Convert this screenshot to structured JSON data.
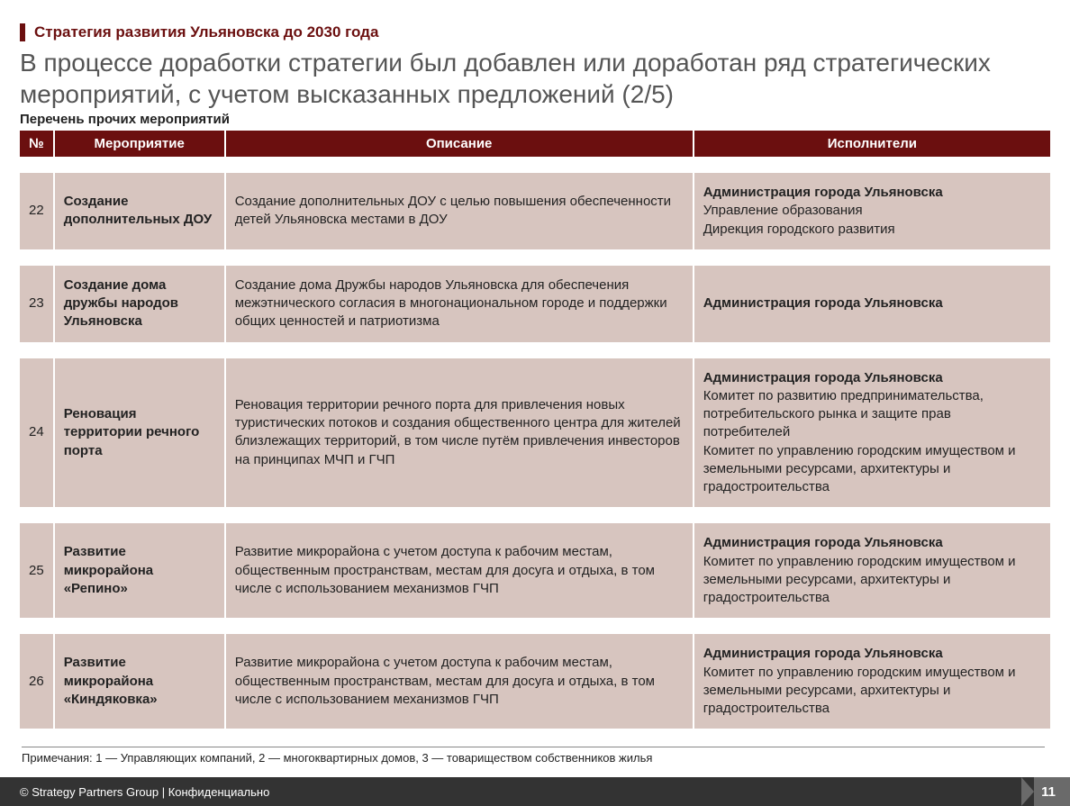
{
  "colors": {
    "brand_dark_red": "#6b0f0f",
    "row_bg": "#d7c5bf",
    "footer_bg": "#333333",
    "page_bg": "#6a6a6a",
    "title_gray": "#555555"
  },
  "kicker": "Стратегия развития Ульяновска до 2030 года",
  "title": "В процессе доработки стратегии был добавлен или доработан ряд стратегических мероприятий, с учетом высказанных предложений  (2/5)",
  "subtitle": "Перечень прочих мероприятий",
  "table": {
    "headers": {
      "num": "№",
      "event": "Мероприятие",
      "desc": "Описание",
      "exec": "Исполнители"
    },
    "rows": [
      {
        "num": "22",
        "event": "Создание дополнительных ДОУ",
        "desc": "Создание дополнительных ДОУ с целью повышения обеспеченности детей Ульяновска местами в ДОУ",
        "exec_lead": "Администрация города Ульяновска",
        "exec_rest": "Управление образования\nДирекция городского развития"
      },
      {
        "num": "23",
        "event": "Создание дома дружбы народов Ульяновска",
        "desc": "Создание дома Дружбы народов Ульяновска  для обеспечения межэтнического согласия в многонациональном городе и поддержки общих ценностей и патриотизма",
        "exec_lead": "Администрация города Ульяновска",
        "exec_rest": ""
      },
      {
        "num": "24",
        "event": "Реновация территории речного порта",
        "desc": "Реновация территории речного порта для привлечения новых туристических потоков и создания общественного центра для жителей близлежащих территорий, в том числе путём привлечения инвесторов на принципах МЧП и ГЧП",
        "exec_lead": "Администрация города Ульяновска",
        "exec_rest": "Комитет по развитию предпринимательства, потребительского рынка и защите прав потребителей\nКомитет по управлению городским имуществом и земельными ресурсами, архитектуры и градостроительства"
      },
      {
        "num": "25",
        "event": "Развитие микрорайона «Репино»",
        "desc": "Развитие микрорайона с учетом доступа к рабочим местам, общественным пространствам, местам для досуга и отдыха, в том числе с использованием механизмов ГЧП",
        "exec_lead": "Администрация города Ульяновска",
        "exec_rest": "Комитет по управлению городским имуществом и земельными ресурсами, архитектуры и градостроительства"
      },
      {
        "num": "26",
        "event": "Развитие микрорайона «Киндяковка»",
        "desc": "Развитие микрорайона с учетом доступа к рабочим местам, общественным пространствам, местам для досуга и отдыха, в том числе с использованием механизмов ГЧП",
        "exec_lead": "Администрация города Ульяновска",
        "exec_rest": "Комитет по управлению городским имуществом и земельными ресурсами, архитектуры и градостроительства"
      }
    ]
  },
  "footnotes": "Примечания: 1 — Управляющих компаний, 2 — многоквартирных домов, 3 — товариществом собственников жилья",
  "footer": {
    "copyright": "© Strategy Partners Group | Конфиденциально",
    "page": "11"
  }
}
